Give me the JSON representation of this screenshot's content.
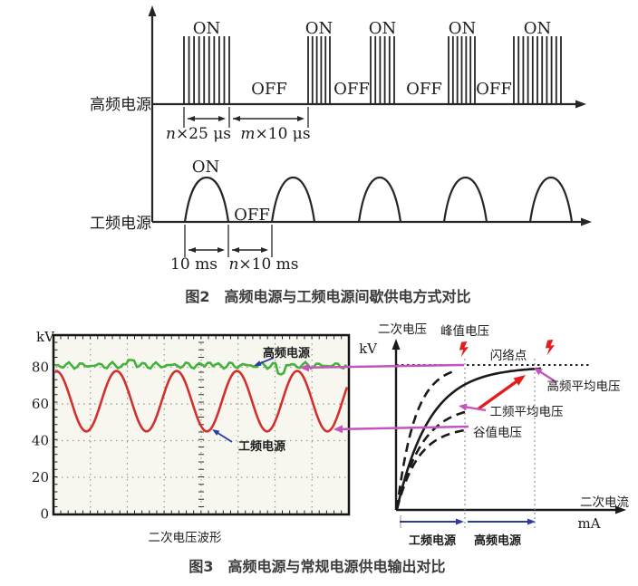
{
  "figure2": {
    "caption": "图2　高频电源与工频电源间歇供电方式对比",
    "hf_row": {
      "label": "高频电源",
      "on_label": "ON",
      "off_label": "OFF",
      "on_burst_count": 5,
      "off_gap_count": 4,
      "dim_on": {
        "var": "n",
        "rest": "×25 μs"
      },
      "dim_off": {
        "var": "m",
        "rest": "×10 μs"
      }
    },
    "lf_row": {
      "label": "工频电源",
      "on_label": "ON",
      "off_label": "OFF",
      "pulse_count": 5,
      "dim_on": {
        "var": "",
        "rest": "10 ms"
      },
      "dim_off": {
        "var": "n",
        "rest": "×10 ms"
      }
    }
  },
  "figure3": {
    "caption": "图3　高频电源与常规电源供电输出对比",
    "scope": {
      "ylabel": "kV",
      "title": "二次电压波形"
    },
    "curves": {
      "ylabel": "二次电压",
      "ylabel_unit": "kV",
      "xlabel": "二次电流",
      "xlabel_unit": "mA",
      "labels": {
        "peak": "峰值电压",
        "flashover": "闪络点",
        "hf_avg": "高频平均电压",
        "lf_avg": "工频平均电压",
        "valley": "谷值电压"
      }
    }
  },
  "colors": {
    "ink": "#262626",
    "hf_trace_green": "#43b13c",
    "lf_trace_red": "#d23030",
    "annotation_blue": "#2b3aa6",
    "connector_magenta": "#c355bd",
    "alert_red": "#e31d1d",
    "grid_dot": "#93a090",
    "scope_bg": "#f7f7ef",
    "dotted_gray": "#9a9a9a"
  },
  "chart_data": [
    {
      "type": "line",
      "title": "二次电压波形",
      "xlabel": "",
      "ylabel": "kV",
      "yticks": [
        0,
        20,
        40,
        60,
        80
      ],
      "ylim": [
        0,
        95
      ],
      "grid": "dotted oscilloscope graticule",
      "legend_position": "inline arrows",
      "series": [
        {
          "name": "高频电源",
          "color": "#43b13c",
          "shape": "constant-with-noise",
          "value_kV": 80
        },
        {
          "name": "工频电源",
          "color": "#d23030",
          "shape": "sine",
          "peak_kV": 78,
          "valley_kV": 45,
          "mean_kV": 61.5,
          "cycles_shown": 4.8
        }
      ]
    },
    {
      "type": "line",
      "title": "高频电源与常规电源供电输出对比",
      "xlabel": "二次电流 mA",
      "ylabel": "二次电压 kV",
      "flashover_level_kV": 80,
      "grid": "off",
      "legend_position": "none",
      "curves": [
        {
          "name": "峰值电压",
          "style": "dashed",
          "saturates_at_kV": 80,
          "flashover_marked": true
        },
        {
          "name": "高频平均电压",
          "style": "solid",
          "saturates_at_kV": 79,
          "flashover_marked": true
        },
        {
          "name": "工频平均电压",
          "style": "dashed",
          "saturates_at_kV": 58
        },
        {
          "name": "谷值电压",
          "style": "dashed",
          "saturates_at_kV": 46
        }
      ],
      "x_ranges": [
        {
          "label": "工频电源"
        },
        {
          "label": "高频电源"
        }
      ]
    }
  ]
}
